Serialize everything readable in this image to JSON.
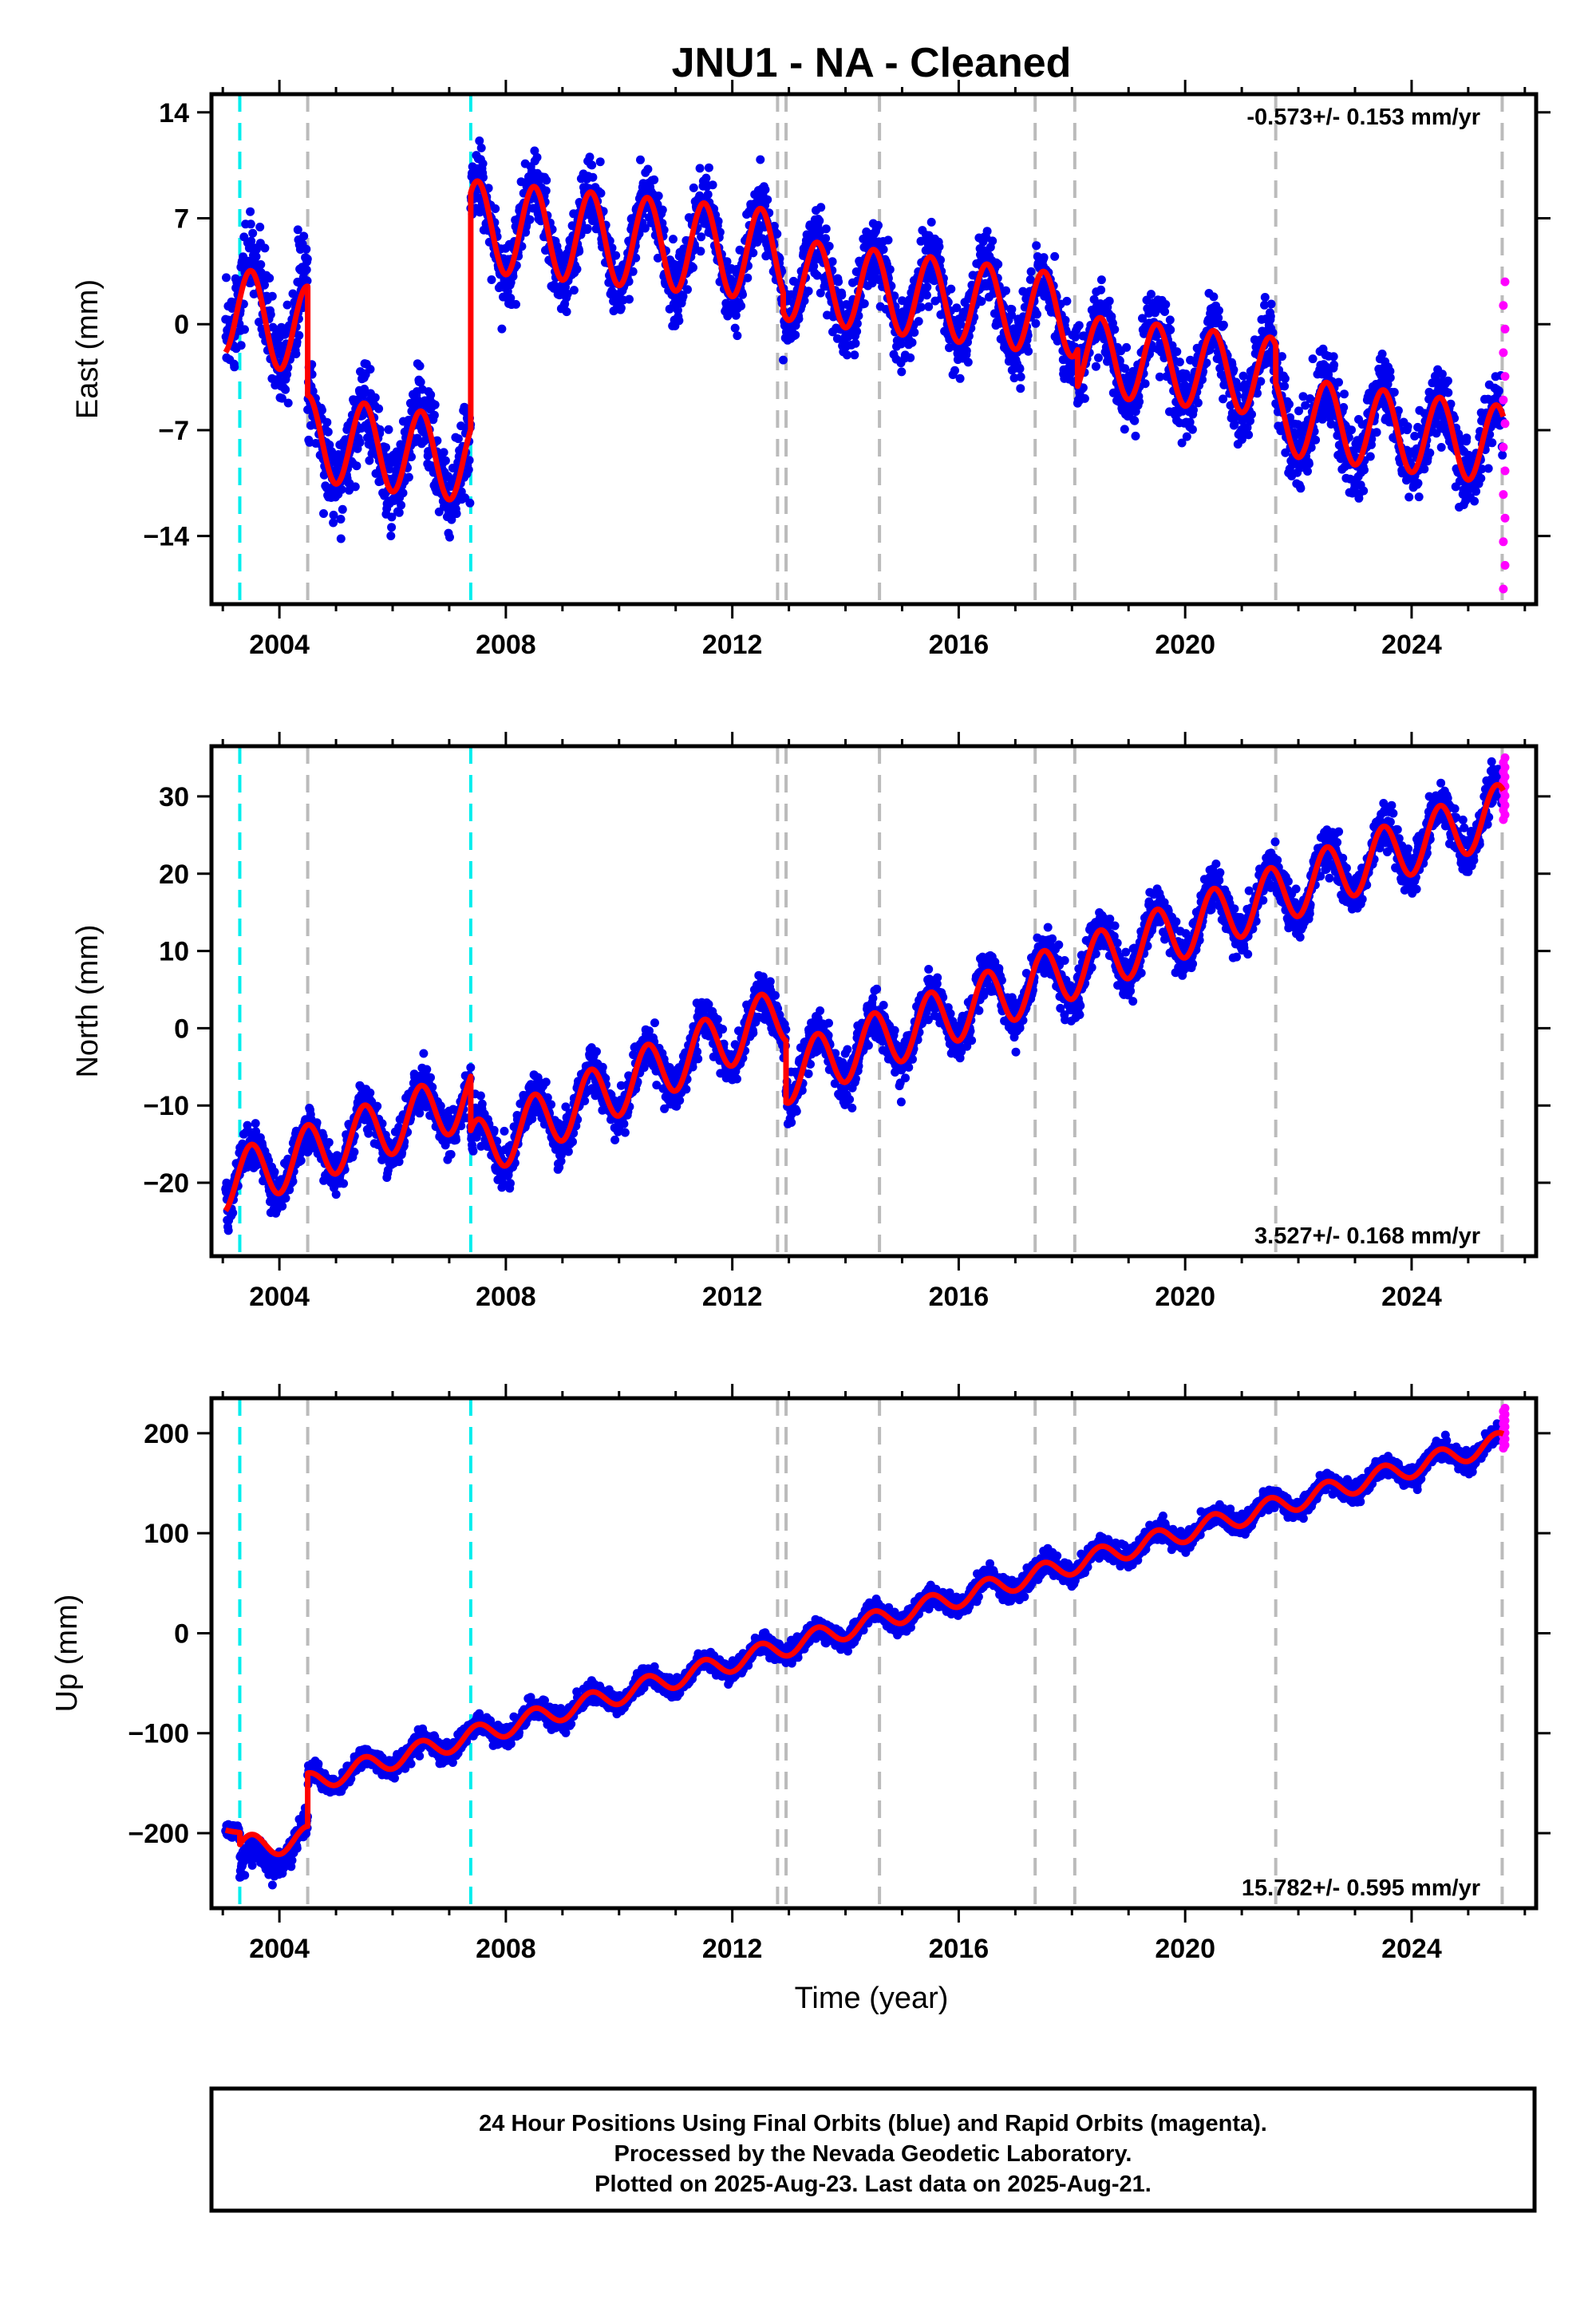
{
  "title": "JNU1  - NA - Cleaned",
  "x_axis_label": "Time (year)",
  "footer_lines": [
    "24 Hour Positions Using Final Orbits (blue) and Rapid Orbits (magenta).",
    "Processed by the Nevada Geodetic Laboratory.",
    "Plotted on 2025-Aug-23. Last data on 2025-Aug-21."
  ],
  "colors": {
    "final_orbits": "#0000ee",
    "rapid_orbits": "#ff00ff",
    "model_fit": "#ff0000",
    "antenna_change": "#00eeee",
    "equipment_change": "#bbbbbb"
  },
  "chart_data": [
    {
      "type": "scatter",
      "panel": "east",
      "ylabel": "East (mm)",
      "rate_label": "-0.573+/- 0.153 mm/yr",
      "rate_position": "top-right",
      "xlim": [
        2002.8,
        2026.2
      ],
      "ylim": [
        -18.5,
        15.2
      ],
      "xticks": [
        2004,
        2008,
        2012,
        2016,
        2020,
        2024
      ],
      "yticks": [
        -14,
        -7,
        0,
        7,
        14
      ],
      "series": [
        {
          "name": "Final Orbits",
          "color": "#0000ee",
          "segments": [
            {
              "start": 2003.05,
              "end": 2004.5,
              "base_start": 1.5,
              "base_end": 0.5,
              "amp": 3.0,
              "noise": 2.2
            },
            {
              "start": 2004.5,
              "end": 2007.38,
              "base_start": -7.5,
              "base_end": -9.0,
              "amp": 2.8,
              "noise": 2.0
            },
            {
              "start": 2007.38,
              "end": 2012.9,
              "base_start": 6.5,
              "base_end": 4.5,
              "amp": 3.0,
              "noise": 1.6
            },
            {
              "start": 2012.9,
              "end": 2018.1,
              "base_start": 3.0,
              "base_end": 0.5,
              "amp": 2.7,
              "noise": 1.6
            },
            {
              "start": 2018.1,
              "end": 2021.6,
              "base_start": -2.0,
              "base_end": -3.5,
              "amp": 2.6,
              "noise": 1.6
            },
            {
              "start": 2021.6,
              "end": 2025.62,
              "base_start": -6.0,
              "base_end": -8.0,
              "amp": 2.6,
              "noise": 1.6
            }
          ]
        },
        {
          "name": "Rapid Orbits",
          "color": "#ff00ff",
          "x_start": 2025.62,
          "x_end": 2025.65,
          "y_min": -17.5,
          "y_max": 2.8
        }
      ],
      "fit": {
        "color": "#ff0000",
        "segments": [
          {
            "start": 2003.05,
            "end": 2004.5,
            "base_start": 1.0,
            "base_end": -0.5,
            "amp": 3.0
          },
          {
            "start": 2004.5,
            "end": 2007.38,
            "base_start": -7.5,
            "base_end": -9.0,
            "amp": 2.8
          },
          {
            "start": 2007.38,
            "end": 2012.9,
            "base_start": 6.5,
            "base_end": 4.5,
            "amp": 3.0
          },
          {
            "start": 2012.9,
            "end": 2018.1,
            "base_start": 3.0,
            "base_end": 0.5,
            "amp": 2.7
          },
          {
            "start": 2018.1,
            "end": 2021.6,
            "base_start": -2.0,
            "base_end": -3.5,
            "amp": 2.6
          },
          {
            "start": 2021.6,
            "end": 2025.62,
            "base_start": -6.0,
            "base_end": -8.0,
            "amp": 2.6
          }
        ]
      }
    },
    {
      "type": "scatter",
      "panel": "north",
      "ylabel": "North (mm)",
      "rate_label": "3.527+/- 0.168 mm/yr",
      "rate_position": "bottom-right",
      "xlim": [
        2002.8,
        2026.2
      ],
      "ylim": [
        -29.5,
        36.5
      ],
      "xticks": [
        2004,
        2008,
        2012,
        2016,
        2020,
        2024
      ],
      "yticks": [
        -20,
        -10,
        0,
        10,
        20,
        30
      ],
      "series": [
        {
          "name": "Final Orbits",
          "color": "#0000ee",
          "segments": [
            {
              "start": 2003.05,
              "end": 2007.38,
              "base_start": -20.0,
              "base_end": -9.0,
              "amp": 3.8,
              "noise": 2.0
            },
            {
              "start": 2007.38,
              "end": 2012.95,
              "base_start": -16.0,
              "base_end": 2.0,
              "amp": 3.8,
              "noise": 2.0
            },
            {
              "start": 2012.95,
              "end": 2025.62,
              "base_start": -6.0,
              "base_end": 28.0,
              "amp": 3.8,
              "noise": 2.0
            }
          ]
        },
        {
          "name": "Rapid Orbits",
          "color": "#ff00ff",
          "x_start": 2025.62,
          "x_end": 2025.65,
          "y_min": 27.0,
          "y_max": 35.0
        }
      ],
      "fit": {
        "color": "#ff0000",
        "segments": [
          {
            "start": 2003.05,
            "end": 2007.38,
            "base_start": -20.0,
            "base_end": -9.0,
            "amp": 3.8
          },
          {
            "start": 2007.38,
            "end": 2012.95,
            "base_start": -16.0,
            "base_end": 2.0,
            "amp": 3.8
          },
          {
            "start": 2012.95,
            "end": 2025.62,
            "base_start": -6.0,
            "base_end": 28.0,
            "amp": 3.8
          }
        ]
      }
    },
    {
      "type": "scatter",
      "panel": "up",
      "ylabel": "Up (mm)",
      "rate_label": "15.782+/- 0.595 mm/yr",
      "rate_position": "bottom-right",
      "xlim": [
        2002.8,
        2026.2
      ],
      "ylim": [
        -275,
        235
      ],
      "xticks": [
        2004,
        2008,
        2012,
        2016,
        2020,
        2024
      ],
      "yticks": [
        -200,
        -100,
        0,
        100,
        200
      ],
      "series": [
        {
          "name": "Final Orbits",
          "color": "#0000ee",
          "segments": [
            {
              "start": 2003.05,
              "end": 2003.3,
              "base_start": -195,
              "base_end": -200,
              "amp": 2,
              "noise": 6
            },
            {
              "start": 2003.3,
              "end": 2004.5,
              "base_start": -238,
              "base_end": -205,
              "amp": 15,
              "noise": 10
            },
            {
              "start": 2004.5,
              "end": 2025.62,
              "base_start": -150,
              "base_end": 192,
              "amp": 10,
              "noise": 7
            }
          ]
        },
        {
          "name": "Rapid Orbits",
          "color": "#ff00ff",
          "x_start": 2025.62,
          "x_end": 2025.65,
          "y_min": 185,
          "y_max": 225
        }
      ],
      "fit": {
        "color": "#ff0000",
        "segments": [
          {
            "start": 2003.05,
            "end": 2003.3,
            "base_start": -195,
            "base_end": -200,
            "amp": 2
          },
          {
            "start": 2003.3,
            "end": 2004.5,
            "base_start": -215,
            "base_end": -205,
            "amp": 12
          },
          {
            "start": 2004.5,
            "end": 2025.62,
            "base_start": -150,
            "base_end": 192,
            "amp": 10
          }
        ]
      }
    }
  ],
  "event_lines": {
    "antenna_changes": [
      2003.3,
      2007.38
    ],
    "equipment_changes": [
      2004.5,
      2012.8,
      2012.95,
      2014.6,
      2017.35,
      2018.05,
      2021.6,
      2025.6
    ]
  }
}
